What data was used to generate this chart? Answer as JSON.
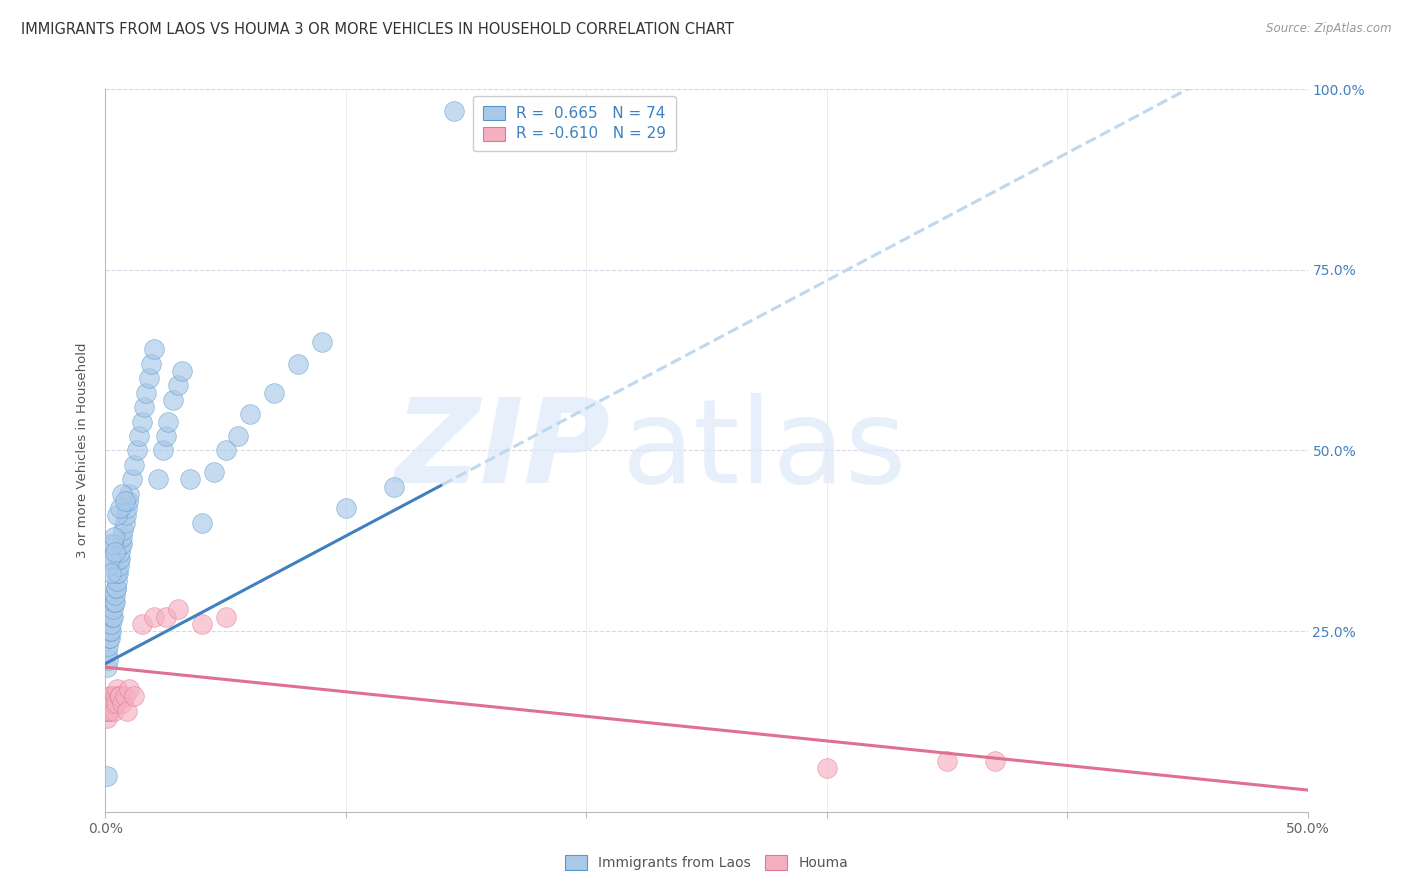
{
  "title": "IMMIGRANTS FROM LAOS VS HOUMA 3 OR MORE VEHICLES IN HOUSEHOLD CORRELATION CHART",
  "source_text": "Source: ZipAtlas.com",
  "ylabel": "3 or more Vehicles in Household",
  "watermark_zip": "ZIP",
  "watermark_atlas": "atlas",
  "legend_r_blue": "R =  0.665   N = 74",
  "legend_r_pink": "R = -0.610   N = 29",
  "legend_bottom_blue": "Immigrants from Laos",
  "legend_bottom_pink": "Houma",
  "xlim": [
    0,
    50
  ],
  "ylim": [
    0,
    100
  ],
  "blue_scatter_color": "#aac8e8",
  "blue_line_color": "#4080c0",
  "blue_edge_color": "#5599cc",
  "pink_scatter_color": "#f5b0c0",
  "pink_line_color": "#e07090",
  "pink_edge_color": "#dd7799",
  "dashed_color": "#c0d8ee",
  "background_color": "#ffffff",
  "grid_color": "#d8d8e8",
  "right_tick_color": "#4080c0",
  "title_color": "#333333",
  "source_color": "#999999",
  "ylabel_color": "#555555",
  "title_fontsize": 10.5,
  "tick_fontsize": 10,
  "blue_x": [
    0.05,
    0.08,
    0.1,
    0.12,
    0.15,
    0.18,
    0.2,
    0.22,
    0.25,
    0.28,
    0.3,
    0.32,
    0.35,
    0.38,
    0.4,
    0.42,
    0.45,
    0.48,
    0.5,
    0.52,
    0.55,
    0.58,
    0.6,
    0.62,
    0.65,
    0.68,
    0.7,
    0.75,
    0.8,
    0.85,
    0.9,
    0.95,
    1.0,
    1.1,
    1.2,
    1.3,
    1.4,
    1.5,
    1.6,
    1.7,
    1.8,
    1.9,
    2.0,
    2.2,
    2.4,
    2.5,
    2.6,
    2.8,
    3.0,
    3.2,
    3.5,
    4.0,
    4.5,
    5.0,
    5.5,
    6.0,
    7.0,
    8.0,
    9.0,
    10.0,
    12.0,
    0.1,
    0.15,
    0.2,
    0.25,
    0.3,
    0.35,
    0.4,
    0.5,
    0.6,
    0.7,
    0.8,
    14.5,
    0.05
  ],
  "blue_y": [
    20,
    22,
    21,
    23,
    24,
    24,
    25,
    25,
    26,
    27,
    27,
    28,
    29,
    29,
    30,
    31,
    31,
    32,
    33,
    33,
    34,
    35,
    35,
    36,
    37,
    37,
    38,
    39,
    40,
    41,
    42,
    43,
    44,
    46,
    48,
    50,
    52,
    54,
    56,
    58,
    60,
    62,
    64,
    46,
    50,
    52,
    54,
    57,
    59,
    61,
    46,
    40,
    47,
    50,
    52,
    55,
    58,
    62,
    65,
    42,
    45,
    34,
    37,
    35,
    33,
    37,
    38,
    36,
    41,
    42,
    44,
    43,
    97,
    5
  ],
  "pink_x": [
    0.05,
    0.08,
    0.1,
    0.12,
    0.15,
    0.18,
    0.2,
    0.25,
    0.3,
    0.35,
    0.4,
    0.45,
    0.5,
    0.55,
    0.6,
    0.7,
    0.8,
    0.9,
    1.0,
    1.2,
    1.5,
    2.0,
    2.5,
    3.0,
    4.0,
    5.0,
    30.0,
    35.0,
    37.0
  ],
  "pink_y": [
    13,
    14,
    14,
    15,
    15,
    14,
    16,
    16,
    15,
    14,
    16,
    15,
    17,
    16,
    16,
    15,
    16,
    14,
    17,
    16,
    26,
    27,
    27,
    28,
    26,
    27,
    6,
    7,
    7
  ],
  "blue_reg_x0": 0,
  "blue_reg_y0": 20.5,
  "blue_reg_x1": 45,
  "blue_reg_y1": 100,
  "blue_solid_end": 14,
  "blue_dashed_start": 14,
  "blue_dashed_end": 50,
  "pink_reg_x0": 0,
  "pink_reg_y0": 20,
  "pink_reg_x1": 50,
  "pink_reg_y1": 3
}
